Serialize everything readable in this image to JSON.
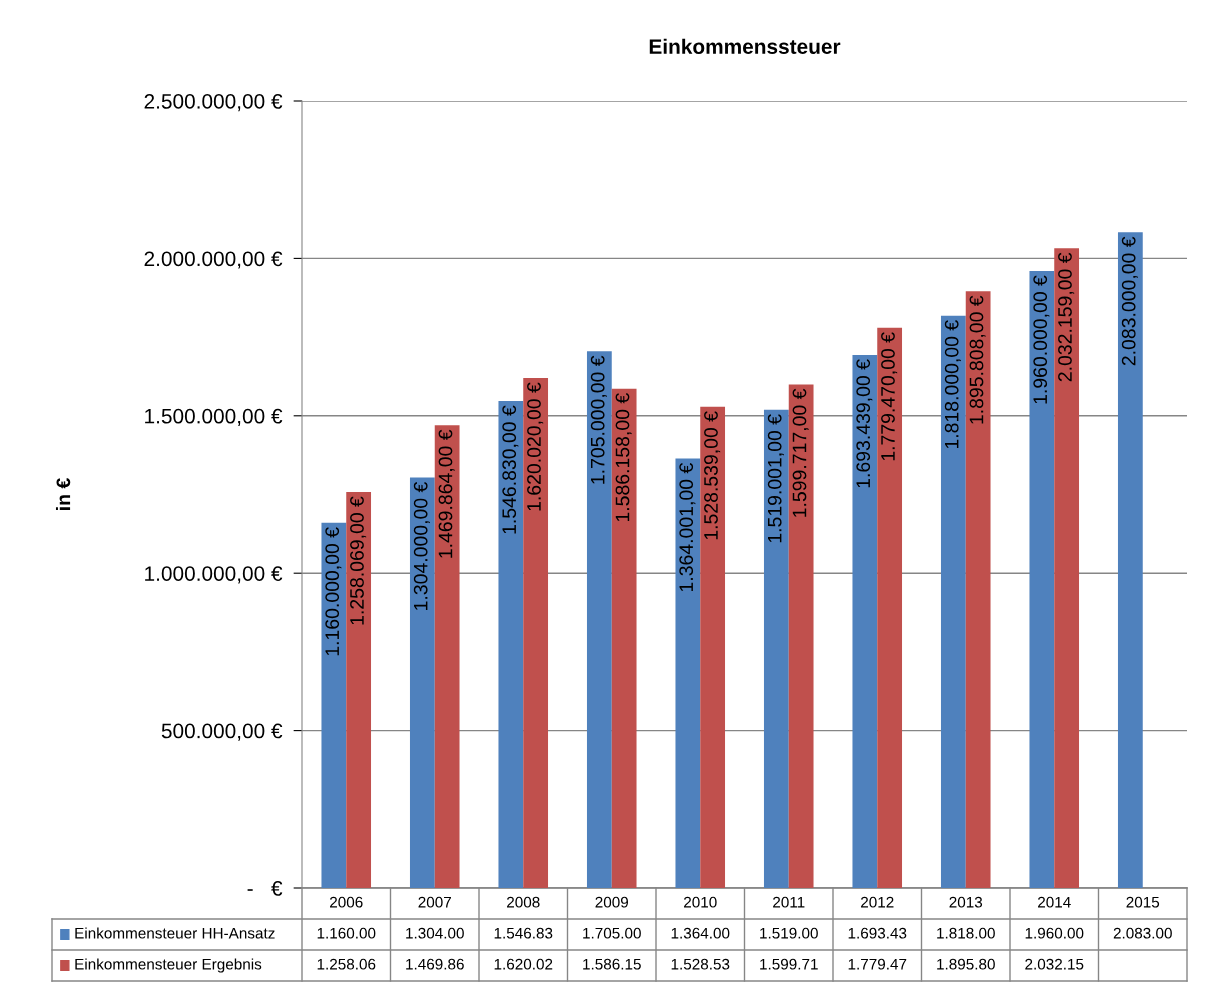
{
  "chart_data": {
    "type": "bar",
    "title": "Einkommenssteuer",
    "ylabel": "in €",
    "categories": [
      "2006",
      "2007",
      "2008",
      "2009",
      "2010",
      "2011",
      "2012",
      "2013",
      "2014",
      "2015"
    ],
    "series": [
      {
        "name": "Einkommensteuer HH-Ansatz",
        "color": "#4f81bd",
        "values": [
          1160000,
          1304000,
          1546830,
          1705000,
          1364001,
          1519001,
          1693439,
          1818000,
          1960000,
          2083000
        ],
        "value_labels": [
          "1.160.000,00 €",
          "1.304.000,00 €",
          "1.546.830,00 €",
          "1.705.000,00 €",
          "1.364.001,00 €",
          "1.519.001,00 €",
          "1.693.439,00 €",
          "1.818.000,00 €",
          "1.960.000,00 €",
          "2.083.000,00 €"
        ]
      },
      {
        "name": "Einkommensteuer Ergebnis",
        "color": "#c0504d",
        "values": [
          1258069,
          1469864,
          1620020,
          1586158,
          1528539,
          1599717,
          1779470,
          1895808,
          2032159,
          null
        ],
        "value_labels": [
          "1.258.069,00 €",
          "1.469.864,00 €",
          "1.620.020,00 €",
          "1.586.158,00 €",
          "1.528.539,00 €",
          "1.599.717,00 €",
          "1.779.470,00 €",
          "1.895.808,00 €",
          "2.032.159,00 €",
          null
        ]
      }
    ],
    "annotations": [
      "1.160.00",
      "1.304.00",
      "1.546.83",
      "1.705.00",
      "1.364.00",
      "1.519.00",
      "1.693.43",
      "1.818.00",
      "1.960.00",
      "2.083.00",
      "1.258.06",
      "1.469.86",
      "1.620.02",
      "1.586.15",
      "1.528.53",
      "1.599.71",
      "1.779.47",
      "1.895.80",
      "2.032.15"
    ],
    "ylim": [
      0,
      2500000
    ],
    "yticks": [
      {
        "value": 0,
        "label": "-   €"
      },
      {
        "value": 500000,
        "label": "500.000,00 €"
      },
      {
        "value": 1000000,
        "label": "1.000.000,00 €"
      },
      {
        "value": 1500000,
        "label": "1.500.000,00 €"
      },
      {
        "value": 2000000,
        "label": "2.000.000,00 €"
      },
      {
        "value": 2500000,
        "label": "2.500.000,00 €"
      }
    ],
    "grid": "y",
    "legend": "bottom"
  }
}
